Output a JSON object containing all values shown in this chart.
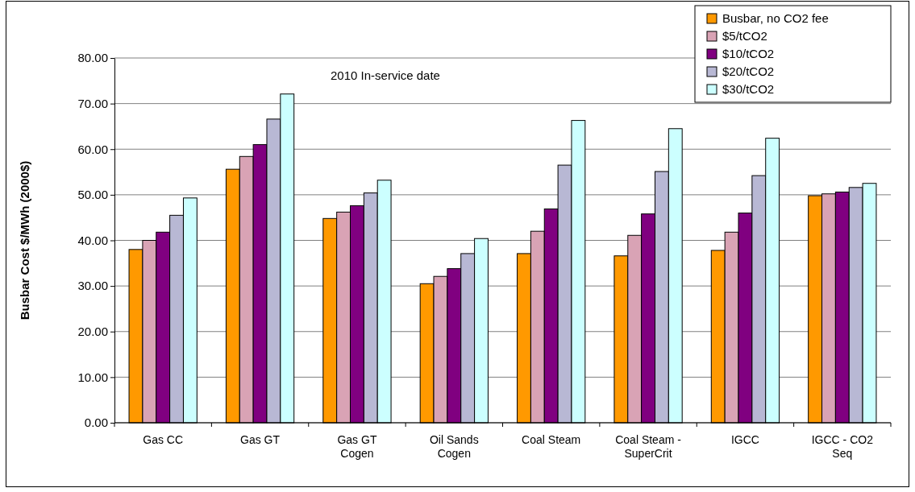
{
  "chart_data": {
    "type": "bar",
    "annotations": [
      "2010 In-service date"
    ],
    "ylabel": "Busbar Cost $/MWh (2000$)",
    "categories": [
      "Gas CC",
      "Gas GT",
      "Gas GT Cogen",
      "Oil Sands Cogen",
      "Coal Steam",
      "Coal Steam - SuperCrit",
      "IGCC",
      "IGCC - CO2 Seq"
    ],
    "series": [
      {
        "name": "Busbar, no CO2 fee",
        "color": "#ff9900",
        "values": [
          38.0,
          55.6,
          44.8,
          30.5,
          37.1,
          36.6,
          37.8,
          49.8
        ]
      },
      {
        "name": "$5/tCO2",
        "color": "#d9a3b5",
        "values": [
          40.0,
          58.4,
          46.2,
          32.1,
          42.0,
          41.1,
          41.8,
          50.2
        ]
      },
      {
        "name": "$10/tCO2",
        "color": "#800080",
        "values": [
          41.8,
          61.0,
          47.6,
          33.8,
          46.9,
          45.8,
          46.0,
          50.6
        ]
      },
      {
        "name": "$20/tCO2",
        "color": "#b8b8d4",
        "values": [
          45.5,
          66.6,
          50.4,
          37.1,
          56.5,
          55.1,
          54.2,
          51.6
        ]
      },
      {
        "name": "$30/tCO2",
        "color": "#ccffff",
        "values": [
          49.3,
          72.1,
          53.2,
          40.4,
          66.3,
          64.5,
          62.4,
          52.5
        ]
      }
    ],
    "ylim": [
      0,
      80
    ],
    "yticks": [
      {
        "value": 0,
        "label": "0.00"
      },
      {
        "value": 10,
        "label": "10.00"
      },
      {
        "value": 20,
        "label": "20.00"
      },
      {
        "value": 30,
        "label": "30.00"
      },
      {
        "value": 40,
        "label": "40.00"
      },
      {
        "value": 50,
        "label": "50.00"
      },
      {
        "value": 60,
        "label": "60.00"
      },
      {
        "value": 70,
        "label": "70.00"
      },
      {
        "value": 80,
        "label": "80.00"
      }
    ],
    "grid": "y",
    "legend": "top right"
  }
}
